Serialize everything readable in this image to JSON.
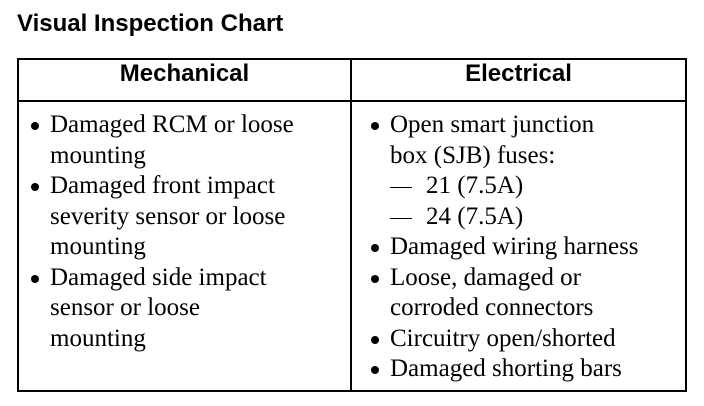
{
  "title": "Visual Inspection Chart",
  "table": {
    "headers": [
      "Mechanical",
      "Electrical"
    ],
    "columns": [
      {
        "items": [
          {
            "lines": [
              "Damaged RCM or loose",
              "mounting"
            ]
          },
          {
            "lines": [
              "Damaged front impact",
              "severity sensor or loose",
              "mounting"
            ]
          },
          {
            "lines": [
              "Damaged side impact",
              "sensor or loose",
              "mounting"
            ]
          }
        ]
      },
      {
        "items": [
          {
            "lines": [
              "Open smart junction",
              "box (SJB) fuses:"
            ],
            "subitems": [
              "21 (7.5A)",
              "24 (7.5A)"
            ]
          },
          {
            "lines": [
              "Damaged wiring harness"
            ]
          },
          {
            "lines": [
              "Loose, damaged or",
              "corroded connectors"
            ]
          },
          {
            "lines": [
              "Circuitry open/shorted"
            ]
          },
          {
            "lines": [
              "Damaged shorting bars"
            ]
          }
        ]
      }
    ]
  }
}
